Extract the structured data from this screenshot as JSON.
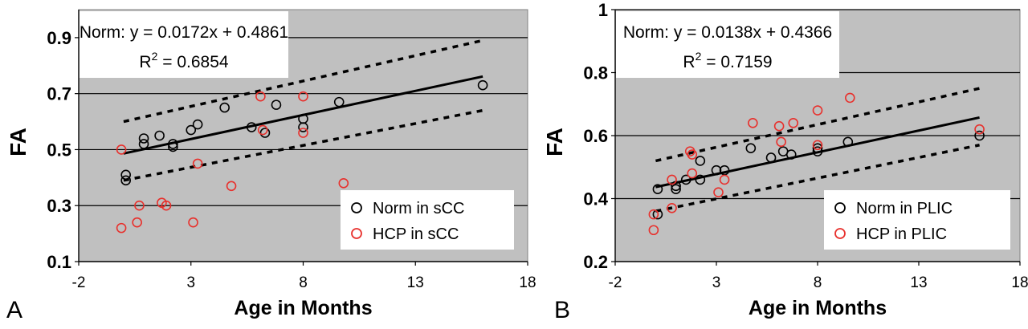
{
  "chart_data": [
    {
      "panel_label": "A",
      "type": "scatter",
      "xlabel": "Age in Months",
      "ylabel": "FA",
      "xlim": [
        -2,
        18
      ],
      "ylim": [
        0.1,
        1.0
      ],
      "xticks": [
        -2,
        3,
        8,
        13,
        18
      ],
      "yticks": [
        0.1,
        0.3,
        0.5,
        0.7,
        0.9
      ],
      "grid": "horizontal",
      "background": "#c0c0c0",
      "equation": "Norm: y = 0.0172x + 0.4861",
      "r2_prefix": "R",
      "r2_sup": "2",
      "r2_value": " = 0.6854",
      "fit": {
        "slope": 0.0172,
        "intercept": 0.4861,
        "x_range": [
          0,
          16
        ]
      },
      "bands": [
        {
          "style": "dashed",
          "points": [
            [
              0,
              0.6
            ],
            [
              16,
              0.89
            ]
          ]
        },
        {
          "style": "dashed",
          "points": [
            [
              0,
              0.39
            ],
            [
              16,
              0.64
            ]
          ]
        }
      ],
      "legend_position": "bottom-right",
      "series": [
        {
          "name": "Norm in sCC",
          "color": "#000000",
          "points": [
            [
              0.1,
              0.41
            ],
            [
              0.1,
              0.39
            ],
            [
              0.9,
              0.52
            ],
            [
              0.9,
              0.54
            ],
            [
              1.6,
              0.55
            ],
            [
              2.2,
              0.52
            ],
            [
              2.2,
              0.51
            ],
            [
              3.0,
              0.57
            ],
            [
              3.3,
              0.59
            ],
            [
              4.5,
              0.65
            ],
            [
              5.7,
              0.58
            ],
            [
              6.3,
              0.56
            ],
            [
              6.8,
              0.66
            ],
            [
              8.0,
              0.61
            ],
            [
              8.0,
              0.58
            ],
            [
              9.6,
              0.67
            ],
            [
              16.0,
              0.73
            ]
          ]
        },
        {
          "name": "HCP in sCC",
          "color": "#e8302c",
          "points": [
            [
              -0.1,
              0.5
            ],
            [
              -0.1,
              0.22
            ],
            [
              0.6,
              0.24
            ],
            [
              0.7,
              0.3
            ],
            [
              1.7,
              0.31
            ],
            [
              1.9,
              0.3
            ],
            [
              3.1,
              0.24
            ],
            [
              3.3,
              0.45
            ],
            [
              4.8,
              0.37
            ],
            [
              6.1,
              0.69
            ],
            [
              6.2,
              0.57
            ],
            [
              8.0,
              0.69
            ],
            [
              8.0,
              0.56
            ],
            [
              9.8,
              0.38
            ]
          ]
        }
      ]
    },
    {
      "panel_label": "B",
      "type": "scatter",
      "xlabel": "Age in Months",
      "ylabel": "FA",
      "xlim": [
        -2,
        18
      ],
      "ylim": [
        0.2,
        1.0
      ],
      "xticks": [
        -2,
        3,
        8,
        13,
        18
      ],
      "yticks": [
        0.2,
        0.4,
        0.6,
        0.8,
        1
      ],
      "grid": "horizontal",
      "background": "#c0c0c0",
      "equation": "Norm: y = 0.0138x + 0.4366",
      "r2_prefix": "R",
      "r2_sup": "2",
      "r2_value": " = 0.7159",
      "fit": {
        "slope": 0.0138,
        "intercept": 0.4366,
        "x_range": [
          0,
          16
        ]
      },
      "bands": [
        {
          "style": "dashed",
          "points": [
            [
              0,
              0.52
            ],
            [
              16,
              0.75
            ]
          ]
        },
        {
          "style": "dashed",
          "points": [
            [
              0,
              0.36
            ],
            [
              16,
              0.57
            ]
          ]
        }
      ],
      "legend_position": "bottom-right",
      "series": [
        {
          "name": "Norm in PLIC",
          "color": "#000000",
          "points": [
            [
              0.1,
              0.43
            ],
            [
              0.1,
              0.35
            ],
            [
              1.0,
              0.44
            ],
            [
              1.0,
              0.43
            ],
            [
              1.5,
              0.46
            ],
            [
              2.2,
              0.46
            ],
            [
              2.2,
              0.52
            ],
            [
              3.0,
              0.49
            ],
            [
              3.4,
              0.49
            ],
            [
              4.7,
              0.56
            ],
            [
              5.7,
              0.53
            ],
            [
              6.3,
              0.55
            ],
            [
              6.7,
              0.54
            ],
            [
              8.0,
              0.55
            ],
            [
              8.0,
              0.56
            ],
            [
              9.5,
              0.58
            ],
            [
              16.0,
              0.6
            ]
          ]
        },
        {
          "name": "HCP in PLIC",
          "color": "#e8302c",
          "points": [
            [
              -0.1,
              0.3
            ],
            [
              -0.1,
              0.35
            ],
            [
              0.8,
              0.37
            ],
            [
              0.8,
              0.46
            ],
            [
              1.7,
              0.55
            ],
            [
              1.8,
              0.54
            ],
            [
              1.8,
              0.48
            ],
            [
              3.1,
              0.42
            ],
            [
              3.4,
              0.46
            ],
            [
              4.8,
              0.64
            ],
            [
              6.1,
              0.63
            ],
            [
              6.2,
              0.58
            ],
            [
              6.8,
              0.64
            ],
            [
              8.0,
              0.68
            ],
            [
              8.0,
              0.57
            ],
            [
              9.6,
              0.72
            ],
            [
              16.0,
              0.62
            ]
          ]
        }
      ]
    }
  ]
}
